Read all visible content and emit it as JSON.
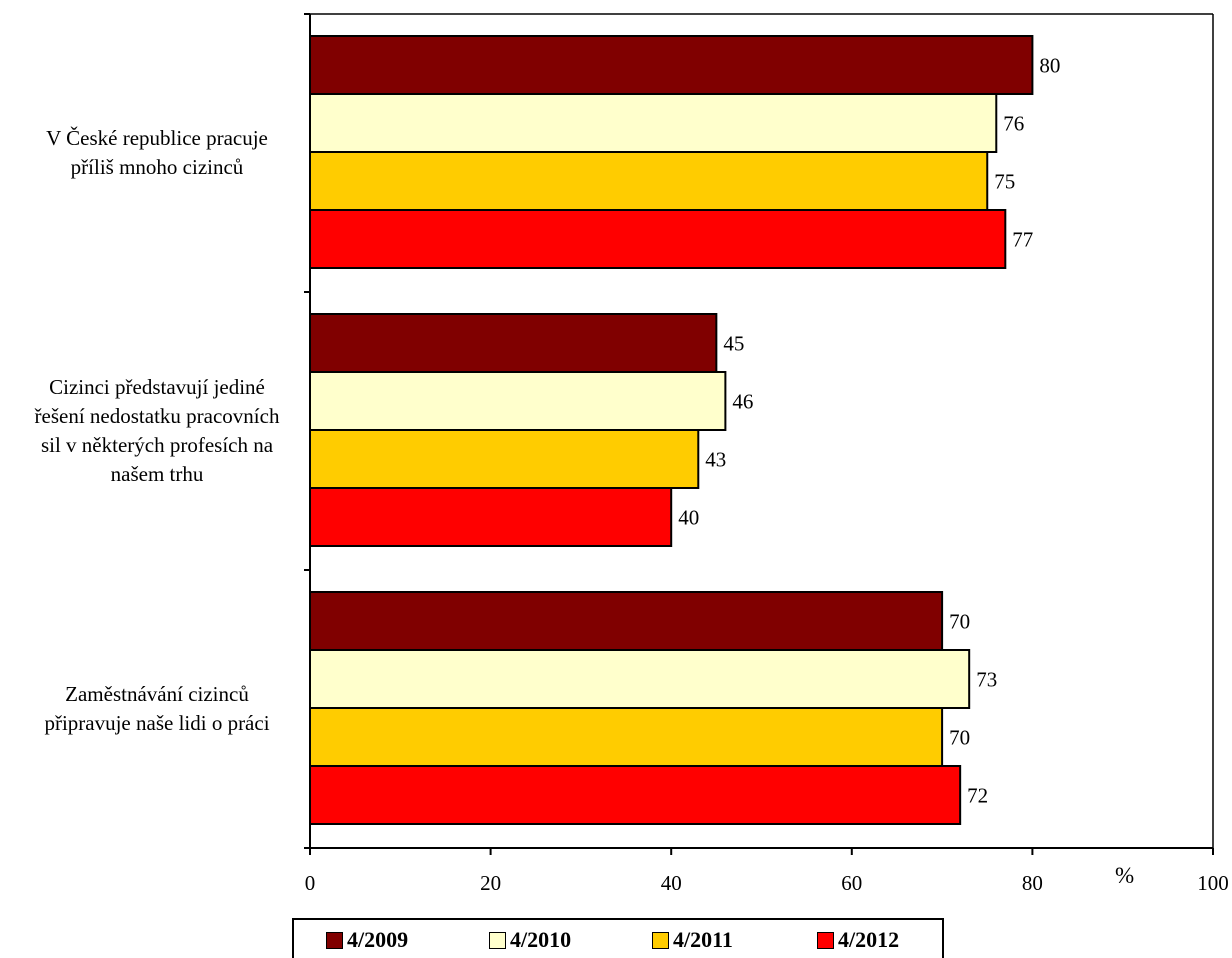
{
  "chart_data": {
    "type": "bar",
    "orientation": "horizontal",
    "categories": [
      "V České republice pracuje\npříliš mnoho cizinců",
      "Cizinci představují jediné\nřešení nedostatku pracovních\nsil v některých profesích na\nnašem trhu",
      "Zaměstnávání cizinců\npřipravuje naše lidi o práci"
    ],
    "series": [
      {
        "name": "4/2009",
        "color": "#800000",
        "values": [
          80,
          45,
          70
        ]
      },
      {
        "name": "4/2010",
        "color": "#FFFFCC",
        "values": [
          76,
          46,
          73
        ]
      },
      {
        "name": "4/2011",
        "color": "#FFCC00",
        "values": [
          75,
          43,
          70
        ]
      },
      {
        "name": "4/2012",
        "color": "#FF0000",
        "values": [
          77,
          40,
          72
        ]
      }
    ],
    "xlim": [
      0,
      100
    ],
    "xticks": [
      0,
      20,
      40,
      60,
      80,
      100
    ],
    "xunit": "%",
    "data_labels": true,
    "grid": false,
    "legend_position": "bottom"
  }
}
